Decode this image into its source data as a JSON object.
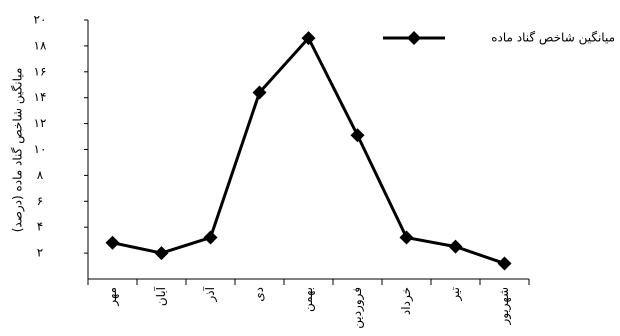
{
  "chart_data": {
    "type": "line",
    "y_label": "میانگین شاخص گناد ماده (درصد)",
    "categories": [
      "مهر",
      "آبان",
      "آذر",
      "دی",
      "بهمن",
      "فروردین",
      "خرداد",
      "تیر",
      "شهریور"
    ],
    "series": [
      {
        "name": "میانگین شاخص گناد ماده",
        "color": "#000000",
        "values": [
          2.8,
          2.0,
          3.2,
          14.4,
          18.6,
          11.1,
          3.2,
          2.5,
          1.2
        ]
      }
    ],
    "ylim": [
      0,
      20
    ],
    "yticks": [
      {
        "value": 2,
        "label": "۲"
      },
      {
        "value": 4,
        "label": "۴"
      },
      {
        "value": 6,
        "label": "۶"
      },
      {
        "value": 8,
        "label": "۸"
      },
      {
        "value": 10,
        "label": "۱۰"
      },
      {
        "value": 12,
        "label": "۱۲"
      },
      {
        "value": 14,
        "label": "۱۴"
      },
      {
        "value": 16,
        "label": "۱۶"
      },
      {
        "value": 18,
        "label": "۱۸"
      },
      {
        "value": 20,
        "label": "۲۰"
      }
    ],
    "legend": "top-right"
  }
}
